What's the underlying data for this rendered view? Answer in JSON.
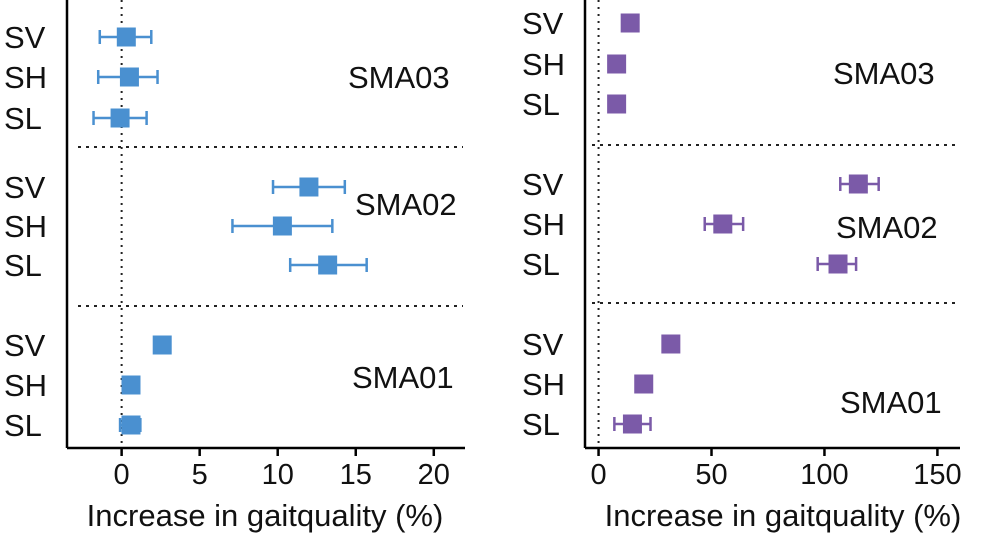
{
  "chart_data": [
    {
      "type": "forest",
      "xlabel": "Increase in gaitquality (%)",
      "xlim": [
        -3.5,
        22
      ],
      "xticks": [
        0,
        5,
        10,
        15,
        20
      ],
      "reference_line": 0,
      "color": "#4a90d0",
      "row_labels": [
        "SV",
        "SH",
        "SL"
      ],
      "groups": [
        {
          "name": "SMA03",
          "points": [
            {
              "label": "SV",
              "value": 0.3,
              "ci": [
                -1.4,
                1.9
              ]
            },
            {
              "label": "SH",
              "value": 0.5,
              "ci": [
                -1.5,
                2.3
              ]
            },
            {
              "label": "SL",
              "value": -0.1,
              "ci": [
                -1.8,
                1.6
              ]
            }
          ]
        },
        {
          "name": "SMA02",
          "points": [
            {
              "label": "SV",
              "value": 12.0,
              "ci": [
                9.7,
                14.3
              ]
            },
            {
              "label": "SH",
              "value": 10.3,
              "ci": [
                7.1,
                13.5
              ]
            },
            {
              "label": "SL",
              "value": 13.2,
              "ci": [
                10.8,
                15.7
              ]
            }
          ]
        },
        {
          "name": "SMA01",
          "points": [
            {
              "label": "SV",
              "value": 2.6,
              "ci": null
            },
            {
              "label": "SH",
              "value": 0.6,
              "ci": null
            },
            {
              "label": "SL",
              "value": 0.6,
              "ci": [
                -0.1,
                1.2
              ]
            }
          ]
        }
      ]
    },
    {
      "type": "forest",
      "xlabel": "Increase in gaitquality (%)",
      "xlim": [
        -6,
        160
      ],
      "xticks": [
        0,
        50,
        100,
        150
      ],
      "reference_line": 0,
      "color": "#7b5aa8",
      "row_labels": [
        "SV",
        "SH",
        "SL"
      ],
      "groups": [
        {
          "name": "SMA03",
          "points": [
            {
              "label": "SV",
              "value": 14,
              "ci": null
            },
            {
              "label": "SH",
              "value": 8,
              "ci": [
                5,
                11
              ]
            },
            {
              "label": "SL",
              "value": 8,
              "ci": null
            }
          ]
        },
        {
          "name": "SMA02",
          "points": [
            {
              "label": "SV",
              "value": 115,
              "ci": [
                107,
                124
              ]
            },
            {
              "label": "SH",
              "value": 55,
              "ci": [
                47,
                64
              ]
            },
            {
              "label": "SL",
              "value": 106,
              "ci": [
                97,
                114
              ]
            }
          ]
        },
        {
          "name": "SMA01",
          "points": [
            {
              "label": "SV",
              "value": 32,
              "ci": null
            },
            {
              "label": "SH",
              "value": 20,
              "ci": null
            },
            {
              "label": "SL",
              "value": 15,
              "ci": [
                7,
                23
              ]
            }
          ]
        }
      ]
    }
  ]
}
